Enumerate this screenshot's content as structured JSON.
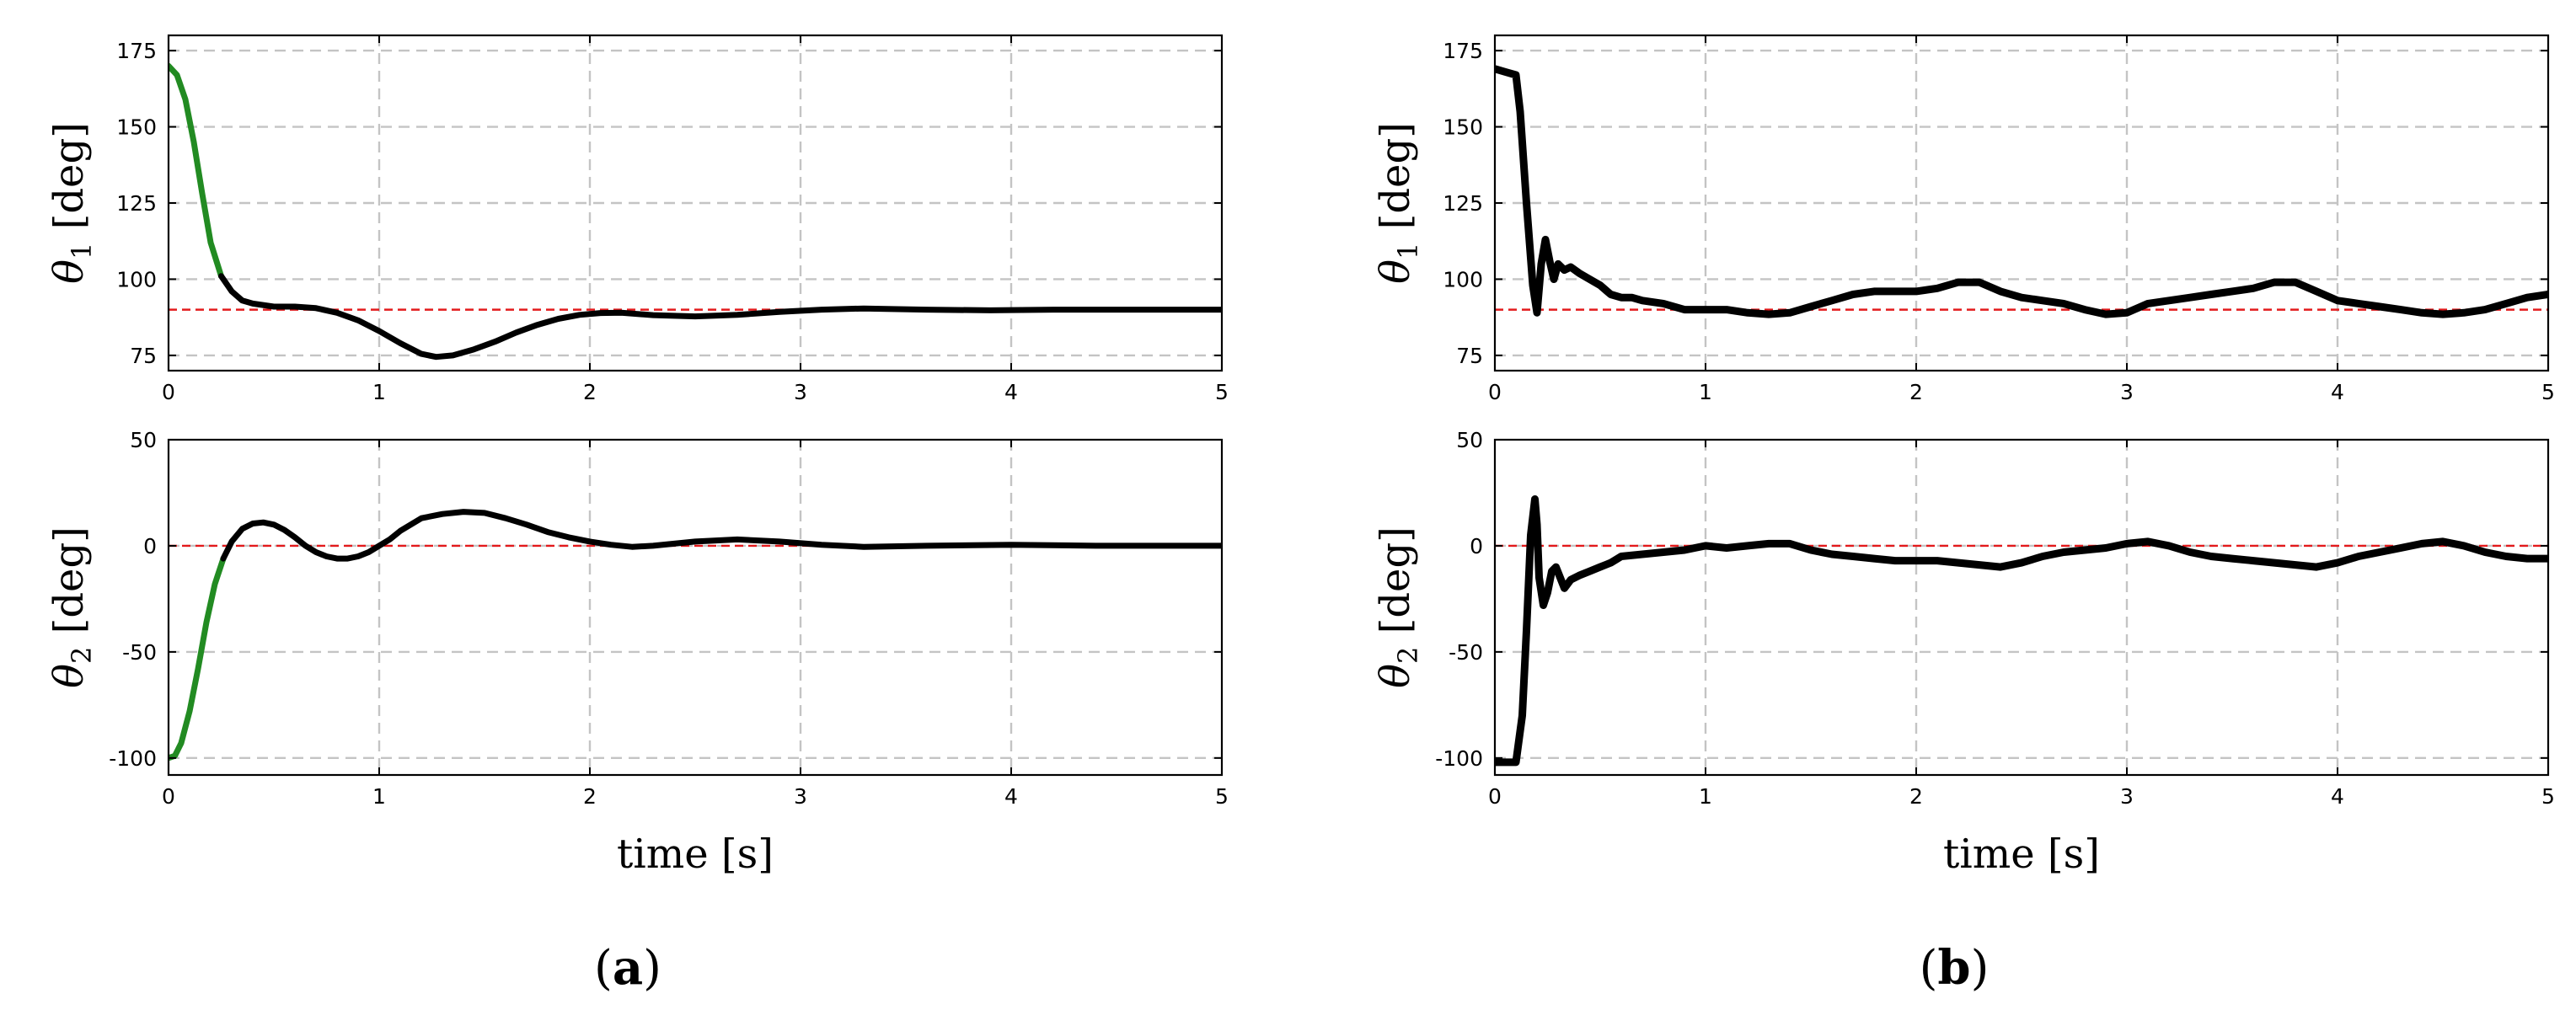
{
  "chart_data": [
    {
      "type": "line",
      "panel_label": "(a)",
      "subplots": [
        {
          "ylabel_symbol": "θ",
          "ylabel_sub": "1",
          "ylabel_unit": "[deg]",
          "xlabel": "",
          "xlim": [
            0,
            5
          ],
          "ylim": [
            70,
            180
          ],
          "xticks": [
            0,
            1,
            2,
            3,
            4,
            5
          ],
          "yticks": [
            75,
            100,
            125,
            150,
            175
          ],
          "grid": true,
          "reference_line": 90,
          "reference_color": "#e31a1c",
          "series": [
            {
              "color": "#228b22",
              "width": 7,
              "x": [
                0,
                0.04,
                0.08,
                0.12,
                0.16,
                0.2,
                0.25
              ],
              "y": [
                170,
                167,
                159,
                145,
                128,
                112,
                101
              ]
            },
            {
              "color": "#000000",
              "width": 7,
              "x": [
                0.25,
                0.3,
                0.35,
                0.4,
                0.5,
                0.6,
                0.7,
                0.8,
                0.9,
                1.0,
                1.1,
                1.2,
                1.27,
                1.35,
                1.45,
                1.55,
                1.65,
                1.75,
                1.85,
                1.95,
                2.05,
                2.15,
                2.3,
                2.5,
                2.7,
                2.9,
                3.1,
                3.3,
                3.6,
                3.9,
                4.2,
                4.6,
                5.0
              ],
              "y": [
                101,
                96,
                93,
                92,
                91,
                91,
                90.5,
                89,
                86.5,
                83,
                79,
                75.5,
                74.5,
                75,
                77,
                79.5,
                82.5,
                85,
                87,
                88.3,
                88.9,
                89,
                88.2,
                87.8,
                88.3,
                89.3,
                90,
                90.4,
                90,
                89.8,
                90,
                90,
                90
              ]
            }
          ]
        },
        {
          "ylabel_symbol": "θ",
          "ylabel_sub": "2",
          "ylabel_unit": "[deg]",
          "xlabel": "time [s]",
          "xlim": [
            0,
            5
          ],
          "ylim": [
            -108,
            50
          ],
          "xticks": [
            0,
            1,
            2,
            3,
            4,
            5
          ],
          "yticks": [
            -100,
            -50,
            0,
            50
          ],
          "grid": true,
          "reference_line": 0,
          "reference_color": "#e31a1c",
          "series": [
            {
              "color": "#228b22",
              "width": 7,
              "x": [
                0,
                0.03,
                0.06,
                0.1,
                0.14,
                0.18,
                0.22,
                0.26
              ],
              "y": [
                -100,
                -99,
                -93,
                -78,
                -58,
                -36,
                -18,
                -6
              ]
            },
            {
              "color": "#000000",
              "width": 7,
              "x": [
                0.26,
                0.3,
                0.35,
                0.4,
                0.45,
                0.5,
                0.55,
                0.6,
                0.65,
                0.7,
                0.75,
                0.8,
                0.85,
                0.9,
                0.95,
                1.0,
                1.05,
                1.1,
                1.15,
                1.2,
                1.3,
                1.4,
                1.5,
                1.6,
                1.7,
                1.8,
                1.9,
                2.0,
                2.1,
                2.2,
                2.3,
                2.5,
                2.7,
                2.9,
                3.1,
                3.3,
                3.6,
                4.0,
                4.4,
                5.0
              ],
              "y": [
                -6,
                2,
                8,
                10.5,
                11,
                10,
                7.5,
                4,
                0,
                -3,
                -5,
                -6,
                -6,
                -5,
                -3,
                0,
                3,
                7,
                10,
                13,
                15,
                16,
                15.5,
                13,
                10,
                6.5,
                4,
                2,
                0.5,
                -0.5,
                0,
                2,
                3,
                2,
                0.5,
                -0.5,
                0,
                0.5,
                0,
                0
              ]
            }
          ]
        }
      ]
    },
    {
      "type": "line",
      "panel_label": "(b)",
      "subplots": [
        {
          "ylabel_symbol": "θ",
          "ylabel_sub": "1",
          "ylabel_unit": "[deg]",
          "xlabel": "",
          "xlim": [
            0,
            5
          ],
          "ylim": [
            70,
            180
          ],
          "xticks": [
            0,
            1,
            2,
            3,
            4,
            5
          ],
          "yticks": [
            75,
            100,
            125,
            150,
            175
          ],
          "grid": true,
          "reference_line": 90,
          "reference_color": "#e31a1c",
          "series": [
            {
              "color": "#000000",
              "width": 9,
              "x": [
                0,
                0.05,
                0.1,
                0.12,
                0.15,
                0.18,
                0.2,
                0.22,
                0.24,
                0.26,
                0.28,
                0.3,
                0.33,
                0.36,
                0.4,
                0.45,
                0.5,
                0.55,
                0.6,
                0.65,
                0.7,
                0.8,
                0.9,
                1.0,
                1.1,
                1.2,
                1.3,
                1.4,
                1.5,
                1.6,
                1.7,
                1.8,
                1.9,
                2.0,
                2.1,
                2.2,
                2.3,
                2.4,
                2.5,
                2.6,
                2.7,
                2.8,
                2.9,
                3.0,
                3.1,
                3.2,
                3.3,
                3.4,
                3.5,
                3.6,
                3.7,
                3.8,
                3.9,
                4.0,
                4.1,
                4.2,
                4.3,
                4.4,
                4.5,
                4.6,
                4.7,
                4.8,
                4.9,
                5.0
              ],
              "y": [
                169,
                168,
                167,
                155,
                125,
                98,
                89,
                105,
                113,
                106,
                100,
                105,
                103,
                104,
                102,
                100,
                98,
                95,
                94,
                94,
                93,
                92,
                90,
                90,
                90,
                89,
                88.5,
                89,
                91,
                93,
                95,
                96,
                96,
                96,
                97,
                99,
                99,
                96,
                94,
                93,
                92,
                90,
                88.5,
                89,
                92,
                93,
                94,
                95,
                96,
                97,
                99,
                99,
                96,
                93,
                92,
                91,
                90,
                89,
                88.5,
                89,
                90,
                92,
                94,
                95
              ]
            }
          ]
        },
        {
          "ylabel_symbol": "θ",
          "ylabel_sub": "2",
          "ylabel_unit": "[deg]",
          "xlabel": "time [s]",
          "xlim": [
            0,
            5
          ],
          "ylim": [
            -108,
            50
          ],
          "xticks": [
            0,
            1,
            2,
            3,
            4,
            5
          ],
          "yticks": [
            -100,
            -50,
            0,
            50
          ],
          "grid": true,
          "reference_line": 0,
          "reference_color": "#e31a1c",
          "series": [
            {
              "color": "#000000",
              "width": 9,
              "x": [
                0,
                0.05,
                0.1,
                0.13,
                0.15,
                0.17,
                0.19,
                0.2,
                0.21,
                0.23,
                0.25,
                0.27,
                0.29,
                0.31,
                0.33,
                0.36,
                0.4,
                0.45,
                0.5,
                0.55,
                0.6,
                0.7,
                0.8,
                0.9,
                1.0,
                1.1,
                1.2,
                1.3,
                1.4,
                1.5,
                1.6,
                1.7,
                1.8,
                1.9,
                2.0,
                2.1,
                2.2,
                2.3,
                2.4,
                2.5,
                2.6,
                2.7,
                2.8,
                2.9,
                3.0,
                3.1,
                3.2,
                3.3,
                3.4,
                3.5,
                3.6,
                3.7,
                3.8,
                3.9,
                4.0,
                4.1,
                4.2,
                4.3,
                4.4,
                4.5,
                4.6,
                4.7,
                4.8,
                4.9,
                5.0
              ],
              "y": [
                -102,
                -102,
                -102,
                -80,
                -40,
                5,
                22,
                10,
                -15,
                -28,
                -22,
                -12,
                -10,
                -15,
                -20,
                -16,
                -14,
                -12,
                -10,
                -8,
                -5,
                -4,
                -3,
                -2,
                0,
                -1,
                0,
                1,
                1,
                -2,
                -4,
                -5,
                -6,
                -7,
                -7,
                -7,
                -8,
                -9,
                -10,
                -8,
                -5,
                -3,
                -2,
                -1,
                1,
                2,
                0,
                -3,
                -5,
                -6,
                -7,
                -8,
                -9,
                -10,
                -8,
                -5,
                -3,
                -1,
                1,
                2,
                0,
                -3,
                -5,
                -6,
                -6
              ]
            }
          ]
        }
      ]
    }
  ]
}
